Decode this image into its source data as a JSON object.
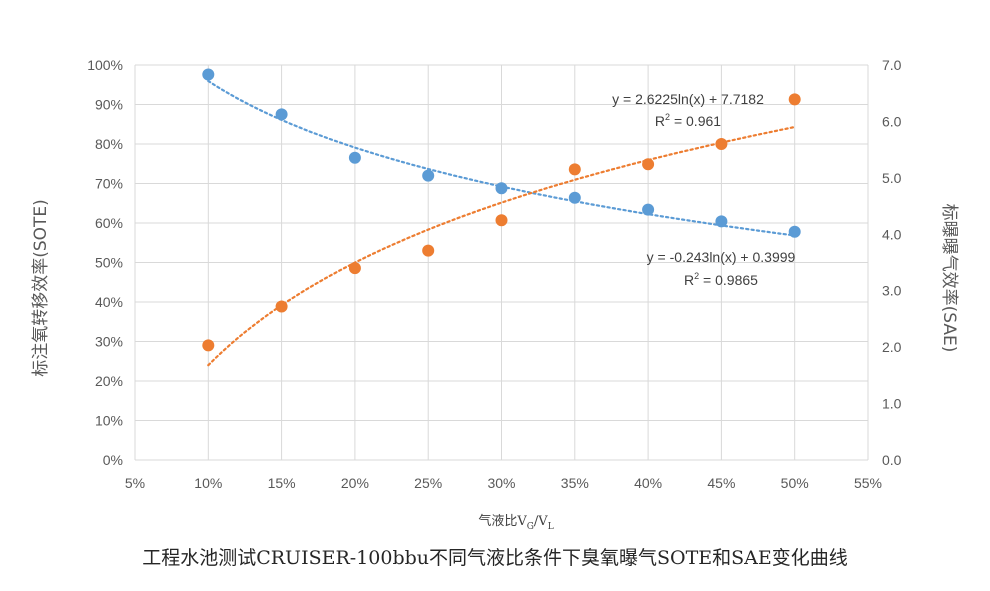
{
  "chart_data": {
    "type": "scatter",
    "title": "",
    "caption": "工程水池测试CRUISER-100bbu不同气液比条件下臭氧曝气SOTE和SAE变化曲线",
    "xlabel": {
      "prefix": "气液比V",
      "sub1": "G",
      "slash": "/V",
      "sub2": "L"
    },
    "ylabel_left": "标注氧转移效率(SOTE)",
    "ylabel_right": "标曝曝气效率(SAE)",
    "x_ticks": [
      "5%",
      "10%",
      "15%",
      "20%",
      "25%",
      "30%",
      "35%",
      "40%",
      "45%",
      "50%",
      "55%"
    ],
    "y_left_ticks": [
      "0%",
      "10%",
      "20%",
      "30%",
      "40%",
      "50%",
      "60%",
      "70%",
      "80%",
      "90%",
      "100%"
    ],
    "y_right_ticks": [
      "0.0",
      "1.0",
      "2.0",
      "3.0",
      "4.0",
      "5.0",
      "6.0",
      "7.0"
    ],
    "xlim": [
      0.05,
      0.55
    ],
    "ylim_left": [
      0,
      1.0
    ],
    "ylim_right": [
      0,
      7.0
    ],
    "grid": true,
    "series": [
      {
        "name": "SOTE",
        "axis": "left",
        "color": "#5B9BD5",
        "x": [
          0.1,
          0.15,
          0.2,
          0.25,
          0.3,
          0.35,
          0.4,
          0.45,
          0.5
        ],
        "y": [
          0.976,
          0.875,
          0.765,
          0.72,
          0.688,
          0.664,
          0.634,
          0.604,
          0.578
        ],
        "trendline": {
          "type": "log",
          "a": -0.243,
          "b": 0.3999
        },
        "equation": "y = -0.243ln(x) + 0.3999",
        "r2_prefix": "R",
        "r2_suffix": " = 0.9865"
      },
      {
        "name": "SAE",
        "axis": "right",
        "color": "#ED7D31",
        "x": [
          0.1,
          0.15,
          0.2,
          0.25,
          0.3,
          0.35,
          0.4,
          0.45,
          0.5
        ],
        "y": [
          2.03,
          2.72,
          3.4,
          3.71,
          4.25,
          5.15,
          5.24,
          5.6,
          6.39
        ],
        "trendline": {
          "type": "log",
          "a": 2.6225,
          "b": 7.7182
        },
        "equation": "y = 2.6225ln(x) + 7.7182",
        "r2_prefix": "R",
        "r2_suffix": " = 0.961"
      }
    ]
  }
}
